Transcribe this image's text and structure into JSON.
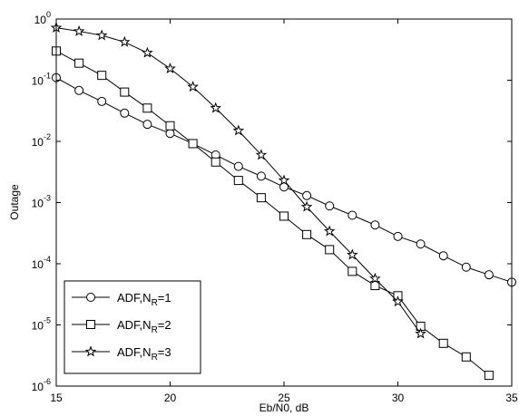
{
  "chart_data": {
    "type": "line",
    "title": "",
    "xlabel": "Eb/N0, dB",
    "ylabel": "Outage",
    "xlim": [
      15,
      35
    ],
    "ylim": [
      1e-06,
      1
    ],
    "y_scale": "log",
    "grid": false,
    "legend_position": "bottom-left",
    "x_ticks": [
      15,
      20,
      25,
      30,
      35
    ],
    "x_tick_labels": [
      "15",
      "20",
      "25",
      "30",
      "35"
    ],
    "y_ticks": [
      1e-06,
      1e-05,
      0.0001,
      0.001,
      0.01,
      0.1,
      1
    ],
    "y_tick_labels": [
      {
        "base": "10",
        "exp": "-6"
      },
      {
        "base": "10",
        "exp": "-5"
      },
      {
        "base": "10",
        "exp": "-4"
      },
      {
        "base": "10",
        "exp": "-3"
      },
      {
        "base": "10",
        "exp": "-2"
      },
      {
        "base": "10",
        "exp": "-1"
      },
      {
        "base": "10",
        "exp": "0"
      }
    ],
    "series": [
      {
        "name": "ADF,N",
        "name_subscript": "R",
        "name_suffix": "=1",
        "marker": "circle",
        "x": [
          15,
          16,
          17,
          18,
          19,
          20,
          21,
          22,
          23,
          24,
          25,
          26,
          27,
          28,
          29,
          30,
          31,
          32,
          33,
          34,
          35
        ],
        "y": [
          0.11,
          0.068,
          0.045,
          0.029,
          0.019,
          0.0135,
          0.0092,
          0.006,
          0.0039,
          0.0027,
          0.0018,
          0.0013,
          0.00088,
          0.00062,
          0.00043,
          0.00028,
          0.00021,
          0.000135,
          8.8e-05,
          6.6e-05,
          5e-05
        ]
      },
      {
        "name": "ADF,N",
        "name_subscript": "R",
        "name_suffix": "=2",
        "marker": "square",
        "x": [
          15,
          16,
          17,
          18,
          19,
          20,
          21,
          22,
          23,
          24,
          25,
          26,
          27,
          28,
          29,
          30,
          31,
          32,
          33,
          34
        ],
        "y": [
          0.3,
          0.19,
          0.12,
          0.064,
          0.035,
          0.018,
          0.0092,
          0.0046,
          0.0023,
          0.0012,
          0.0006,
          0.0003,
          0.00017,
          7.5e-05,
          4.4e-05,
          3e-05,
          9.5e-06,
          5e-06,
          3e-06,
          1.5e-06
        ]
      },
      {
        "name": "ADF,N",
        "name_subscript": "R",
        "name_suffix": "=3",
        "marker": "star",
        "x": [
          15,
          16,
          17,
          18,
          19,
          20,
          21,
          22,
          23,
          24,
          25,
          26,
          27,
          28,
          29,
          30,
          31
        ],
        "y": [
          0.72,
          0.63,
          0.54,
          0.42,
          0.28,
          0.155,
          0.078,
          0.035,
          0.015,
          0.006,
          0.0023,
          0.00085,
          0.00034,
          0.00014,
          5.7e-05,
          2.4e-05,
          7.2e-06
        ]
      }
    ]
  }
}
